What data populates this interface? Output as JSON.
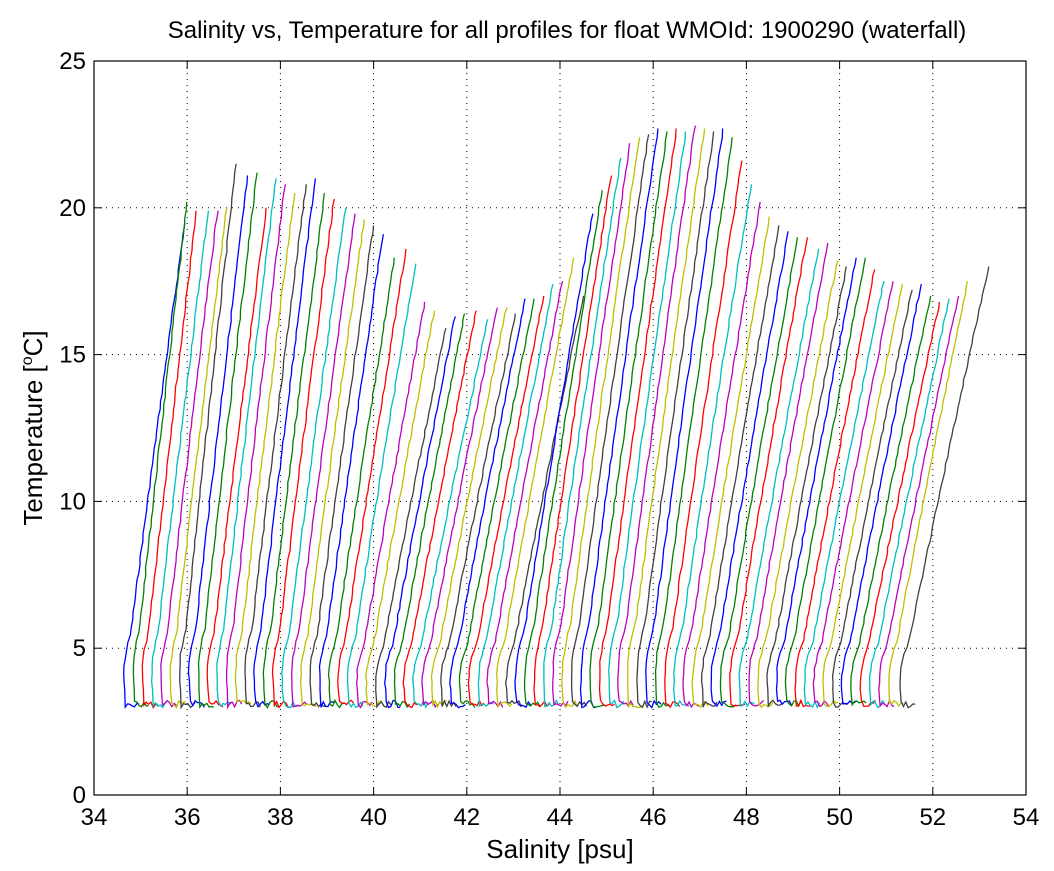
{
  "chart_data": {
    "type": "line",
    "title": "Salinity vs, Temperature for all profiles for float WMOId: 1900290 (waterfall)",
    "xlabel": "Salinity [psu]",
    "ylabel_prefix": "Temperature [",
    "ylabel_sup": "o",
    "ylabel_suffix": "C]",
    "xlim": [
      34,
      54
    ],
    "ylim": [
      0,
      25
    ],
    "xticks": [
      34,
      36,
      38,
      40,
      42,
      44,
      46,
      48,
      50,
      52,
      54
    ],
    "yticks": [
      0,
      5,
      10,
      15,
      20,
      25
    ],
    "grid": true,
    "grid_style": "dotted",
    "colors": [
      "#0000ff",
      "#008000",
      "#ff0000",
      "#00bfbf",
      "#bf00bf",
      "#bfbf00",
      "#404040"
    ],
    "profile_offset_psu": 0.2,
    "bottom_temp": 3.1,
    "profiles": [
      {
        "s_bottom": 34.65,
        "s_surface": 35.95,
        "t_top": 19.5
      },
      {
        "s_bottom": 34.85,
        "s_surface": 36.0,
        "t_top": 20.2
      },
      {
        "s_bottom": 35.05,
        "s_surface": 36.2,
        "t_top": 19.9
      },
      {
        "s_bottom": 35.25,
        "s_surface": 36.45,
        "t_top": 19.9
      },
      {
        "s_bottom": 35.45,
        "s_surface": 36.65,
        "t_top": 19.9
      },
      {
        "s_bottom": 35.65,
        "s_surface": 36.85,
        "t_top": 20.0
      },
      {
        "s_bottom": 35.85,
        "s_surface": 37.05,
        "t_top": 21.5
      },
      {
        "s_bottom": 36.05,
        "s_surface": 37.3,
        "t_top": 21.1
      },
      {
        "s_bottom": 36.25,
        "s_surface": 37.5,
        "t_top": 21.2
      },
      {
        "s_bottom": 36.45,
        "s_surface": 37.7,
        "t_top": 20.0
      },
      {
        "s_bottom": 36.65,
        "s_surface": 37.9,
        "t_top": 21.0
      },
      {
        "s_bottom": 36.85,
        "s_surface": 38.1,
        "t_top": 20.8
      },
      {
        "s_bottom": 37.05,
        "s_surface": 38.3,
        "t_top": 20.5
      },
      {
        "s_bottom": 37.25,
        "s_surface": 38.55,
        "t_top": 20.8
      },
      {
        "s_bottom": 37.45,
        "s_surface": 38.75,
        "t_top": 21.0
      },
      {
        "s_bottom": 37.65,
        "s_surface": 38.95,
        "t_top": 20.5
      },
      {
        "s_bottom": 37.85,
        "s_surface": 39.15,
        "t_top": 20.3
      },
      {
        "s_bottom": 38.05,
        "s_surface": 39.4,
        "t_top": 20.0
      },
      {
        "s_bottom": 38.25,
        "s_surface": 39.6,
        "t_top": 19.8
      },
      {
        "s_bottom": 38.45,
        "s_surface": 39.8,
        "t_top": 19.6
      },
      {
        "s_bottom": 38.65,
        "s_surface": 40.0,
        "t_top": 19.4
      },
      {
        "s_bottom": 38.85,
        "s_surface": 40.2,
        "t_top": 19.1
      },
      {
        "s_bottom": 39.05,
        "s_surface": 40.45,
        "t_top": 18.3
      },
      {
        "s_bottom": 39.25,
        "s_surface": 40.7,
        "t_top": 18.6
      },
      {
        "s_bottom": 39.45,
        "s_surface": 40.9,
        "t_top": 18.1
      },
      {
        "s_bottom": 39.65,
        "s_surface": 41.1,
        "t_top": 16.8
      },
      {
        "s_bottom": 39.85,
        "s_surface": 41.3,
        "t_top": 16.5
      },
      {
        "s_bottom": 40.05,
        "s_surface": 41.55,
        "t_top": 15.9
      },
      {
        "s_bottom": 40.25,
        "s_surface": 41.75,
        "t_top": 16.3
      },
      {
        "s_bottom": 40.45,
        "s_surface": 41.95,
        "t_top": 16.4
      },
      {
        "s_bottom": 40.65,
        "s_surface": 42.2,
        "t_top": 16.5
      },
      {
        "s_bottom": 40.85,
        "s_surface": 42.45,
        "t_top": 16.2
      },
      {
        "s_bottom": 41.05,
        "s_surface": 42.65,
        "t_top": 16.6
      },
      {
        "s_bottom": 41.25,
        "s_surface": 42.85,
        "t_top": 16.6
      },
      {
        "s_bottom": 41.45,
        "s_surface": 43.05,
        "t_top": 16.4
      },
      {
        "s_bottom": 41.65,
        "s_surface": 43.25,
        "t_top": 16.9
      },
      {
        "s_bottom": 41.85,
        "s_surface": 43.45,
        "t_top": 16.9
      },
      {
        "s_bottom": 42.05,
        "s_surface": 43.65,
        "t_top": 17.0
      },
      {
        "s_bottom": 42.25,
        "s_surface": 43.85,
        "t_top": 17.4
      },
      {
        "s_bottom": 42.45,
        "s_surface": 44.05,
        "t_top": 17.5
      },
      {
        "s_bottom": 42.65,
        "s_surface": 44.3,
        "t_top": 18.3
      },
      {
        "s_bottom": 42.85,
        "s_surface": 44.5,
        "t_top": 17.0
      },
      {
        "s_bottom": 43.05,
        "s_surface": 44.7,
        "t_top": 19.8
      },
      {
        "s_bottom": 43.25,
        "s_surface": 44.9,
        "t_top": 20.6
      },
      {
        "s_bottom": 43.45,
        "s_surface": 45.1,
        "t_top": 21.1
      },
      {
        "s_bottom": 43.65,
        "s_surface": 45.3,
        "t_top": 21.7
      },
      {
        "s_bottom": 43.85,
        "s_surface": 45.5,
        "t_top": 22.2
      },
      {
        "s_bottom": 44.05,
        "s_surface": 45.7,
        "t_top": 22.4
      },
      {
        "s_bottom": 44.25,
        "s_surface": 45.9,
        "t_top": 22.5
      },
      {
        "s_bottom": 44.45,
        "s_surface": 46.1,
        "t_top": 22.7
      },
      {
        "s_bottom": 44.65,
        "s_surface": 46.3,
        "t_top": 22.6
      },
      {
        "s_bottom": 44.85,
        "s_surface": 46.5,
        "t_top": 22.7
      },
      {
        "s_bottom": 45.05,
        "s_surface": 46.7,
        "t_top": 22.6
      },
      {
        "s_bottom": 45.25,
        "s_surface": 46.9,
        "t_top": 22.8
      },
      {
        "s_bottom": 45.45,
        "s_surface": 47.1,
        "t_top": 22.7
      },
      {
        "s_bottom": 45.65,
        "s_surface": 47.3,
        "t_top": 22.6
      },
      {
        "s_bottom": 45.85,
        "s_surface": 47.5,
        "t_top": 22.7
      },
      {
        "s_bottom": 46.05,
        "s_surface": 47.7,
        "t_top": 22.4
      },
      {
        "s_bottom": 46.25,
        "s_surface": 47.9,
        "t_top": 21.6
      },
      {
        "s_bottom": 46.45,
        "s_surface": 48.1,
        "t_top": 20.8
      },
      {
        "s_bottom": 46.65,
        "s_surface": 48.3,
        "t_top": 20.2
      },
      {
        "s_bottom": 46.85,
        "s_surface": 48.5,
        "t_top": 19.7
      },
      {
        "s_bottom": 47.05,
        "s_surface": 48.7,
        "t_top": 19.4
      },
      {
        "s_bottom": 47.25,
        "s_surface": 48.9,
        "t_top": 19.2
      },
      {
        "s_bottom": 47.45,
        "s_surface": 49.1,
        "t_top": 19.0
      },
      {
        "s_bottom": 47.65,
        "s_surface": 49.3,
        "t_top": 19.0
      },
      {
        "s_bottom": 47.85,
        "s_surface": 49.55,
        "t_top": 18.6
      },
      {
        "s_bottom": 48.05,
        "s_surface": 49.75,
        "t_top": 18.8
      },
      {
        "s_bottom": 48.25,
        "s_surface": 49.95,
        "t_top": 18.2
      },
      {
        "s_bottom": 48.45,
        "s_surface": 50.15,
        "t_top": 18.0
      },
      {
        "s_bottom": 48.65,
        "s_surface": 50.35,
        "t_top": 18.3
      },
      {
        "s_bottom": 48.85,
        "s_surface": 50.55,
        "t_top": 18.3
      },
      {
        "s_bottom": 49.05,
        "s_surface": 50.75,
        "t_top": 17.9
      },
      {
        "s_bottom": 49.25,
        "s_surface": 50.95,
        "t_top": 17.5
      },
      {
        "s_bottom": 49.45,
        "s_surface": 51.15,
        "t_top": 17.5
      },
      {
        "s_bottom": 49.65,
        "s_surface": 51.35,
        "t_top": 17.4
      },
      {
        "s_bottom": 49.85,
        "s_surface": 51.55,
        "t_top": 17.2
      },
      {
        "s_bottom": 50.05,
        "s_surface": 51.75,
        "t_top": 17.4
      },
      {
        "s_bottom": 50.25,
        "s_surface": 51.95,
        "t_top": 17.0
      },
      {
        "s_bottom": 50.45,
        "s_surface": 52.15,
        "t_top": 16.8
      },
      {
        "s_bottom": 50.65,
        "s_surface": 52.35,
        "t_top": 16.9
      },
      {
        "s_bottom": 50.85,
        "s_surface": 52.55,
        "t_top": 17.0
      },
      {
        "s_bottom": 51.05,
        "s_surface": 52.75,
        "t_top": 17.5
      },
      {
        "s_bottom": 51.3,
        "s_surface": 53.2,
        "t_top": 18.0
      }
    ]
  }
}
